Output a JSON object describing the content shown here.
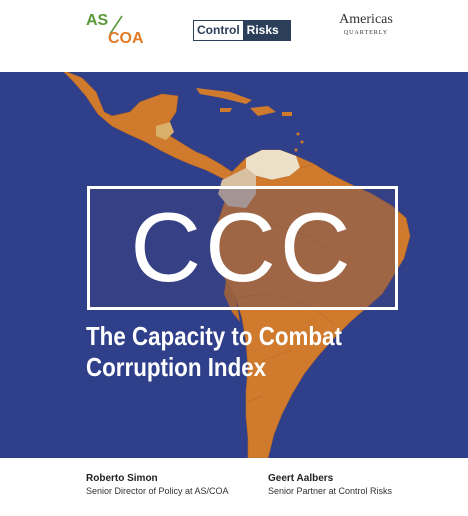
{
  "logos": {
    "ascoa_as": "AS",
    "ascoa_coa": "COA",
    "controlrisks_part1": "Control",
    "controlrisks_part2": "Risks",
    "aq_line1": "Americas",
    "aq_line2": "QUARTERLY"
  },
  "cover": {
    "acronym": "CCC",
    "title_line1": "The Capacity to Combat",
    "title_line2": "Corruption Index"
  },
  "authors": [
    {
      "name": "Roberto Simon",
      "role": "Senior Director of Policy at AS/COA"
    },
    {
      "name": "Geert Aalbers",
      "role": "Senior Partner at Control Risks"
    }
  ],
  "colors": {
    "background_blue": "#2f3f8a",
    "map_orange": "#cf7a2c",
    "map_highlight": "#d7c1a0",
    "ascoa_green": "#5a9a3a",
    "ascoa_orange": "#e07a25",
    "controlrisks_navy": "#2b3f5a"
  }
}
